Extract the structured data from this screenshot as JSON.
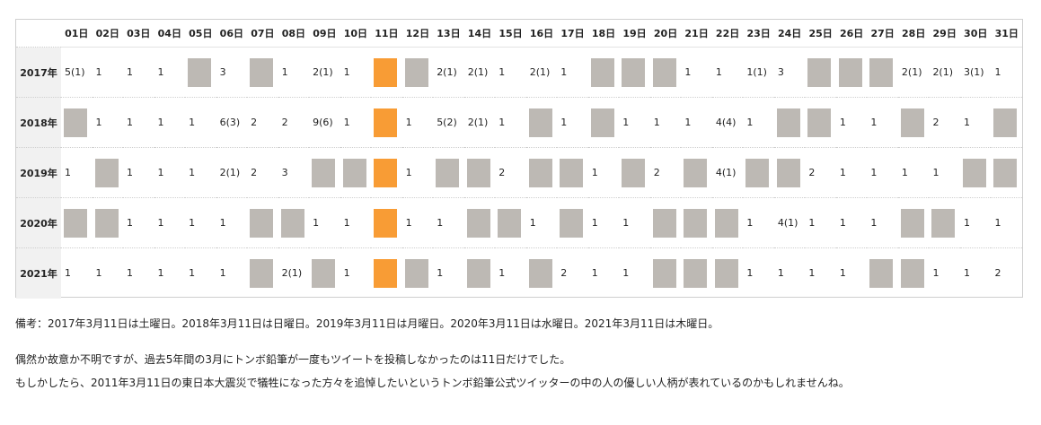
{
  "days": [
    "01日",
    "02日",
    "03日",
    "04日",
    "05日",
    "06日",
    "07日",
    "08日",
    "09日",
    "10日",
    "11日",
    "12日",
    "13日",
    "14日",
    "15日",
    "16日",
    "17日",
    "18日",
    "19日",
    "20日",
    "21日",
    "22日",
    "23日",
    "24日",
    "25日",
    "26日",
    "27日",
    "28日",
    "29日",
    "30日",
    "31日"
  ],
  "rows": [
    {
      "year": "2017年",
      "cells": [
        "5(1)",
        "1",
        "1",
        "1",
        "#",
        "3",
        "#",
        "1",
        "2(1)",
        "1",
        "@",
        "#",
        "2(1)",
        "2(1)",
        "1",
        "2(1)",
        "1",
        "#",
        "#",
        "#",
        "1",
        "1",
        "1(1)",
        "3",
        "#",
        "#",
        "#",
        "2(1)",
        "2(1)",
        "3(1)",
        "1"
      ]
    },
    {
      "year": "2018年",
      "cells": [
        "#",
        "1",
        "1",
        "1",
        "1",
        "6(3)",
        "2",
        "2",
        "9(6)",
        "1",
        "@",
        "1",
        "5(2)",
        "2(1)",
        "1",
        "#",
        "1",
        "#",
        "1",
        "1",
        "1",
        "4(4)",
        "1",
        "#",
        "#",
        "1",
        "1",
        "#",
        "2",
        "1",
        "#"
      ]
    },
    {
      "year": "2019年",
      "cells": [
        "1",
        "#",
        "1",
        "1",
        "1",
        "2(1)",
        "2",
        "3",
        "#",
        "#",
        "@",
        "1",
        "#",
        "#",
        "2",
        "#",
        "#",
        "1",
        "#",
        "2",
        "#",
        "4(1)",
        "#",
        "#",
        "2",
        "1",
        "1",
        "1",
        "1",
        "#",
        "#"
      ]
    },
    {
      "year": "2020年",
      "cells": [
        "#",
        "#",
        "1",
        "1",
        "1",
        "1",
        "#",
        "#",
        "1",
        "1",
        "@",
        "1",
        "1",
        "#",
        "#",
        "1",
        "#",
        "1",
        "1",
        "#",
        "#",
        "#",
        "1",
        "4(1)",
        "1",
        "1",
        "1",
        "#",
        "#",
        "1",
        "1"
      ]
    },
    {
      "year": "2021年",
      "cells": [
        "1",
        "1",
        "1",
        "1",
        "1",
        "1",
        "#",
        "2(1)",
        "#",
        "1",
        "@",
        "#",
        "1",
        "#",
        "1",
        "#",
        "2",
        "1",
        "1",
        "#",
        "#",
        "#",
        "1",
        "1",
        "1",
        "1",
        "#",
        "#",
        "1",
        "1",
        "2"
      ]
    }
  ],
  "notes": {
    "line1": "備考：2017年3月11日は土曜日。2018年3月11日は日曜日。2019年3月11日は月曜日。2020年3月11日は水曜日。2021年3月11日は木曜日。",
    "line2": "偶然か故意か不明ですが、過去5年間の3月にトンボ鉛筆が一度もツイートを投稿しなかったのは11日だけでした。",
    "line3": "もしかしたら、2011年3月11日の東日本大震災で犠牲になった方々を追悼したいというトンボ鉛筆公式ツイッターの中の人の優しい人柄が表れているのかもしれませんね。"
  },
  "colors": {
    "no_tweet": "#bdb9b4",
    "highlight_11th": "#f89c35",
    "year_bg": "#f1f1f1"
  }
}
